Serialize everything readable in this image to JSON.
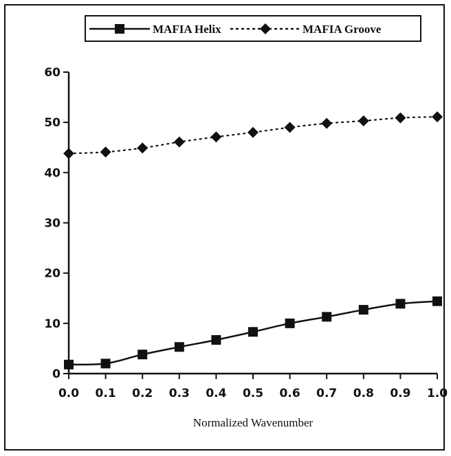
{
  "chart_data": {
    "type": "line",
    "xlabel": "Normalized Wavenumber",
    "ylabel": "",
    "title": "",
    "xlim": [
      0.0,
      1.0
    ],
    "ylim": [
      0,
      60
    ],
    "x_ticks": [
      "0.0",
      "0.1",
      "0.2",
      "0.3",
      "0.4",
      "0.5",
      "0.6",
      "0.7",
      "0.8",
      "0.9",
      "1.0"
    ],
    "y_ticks": [
      "0",
      "10",
      "20",
      "30",
      "40",
      "50",
      "60"
    ],
    "grid": false,
    "legend_position": "top",
    "x": [
      0.0,
      0.1,
      0.2,
      0.3,
      0.4,
      0.5,
      0.6,
      0.7,
      0.8,
      0.9,
      1.0
    ],
    "series": [
      {
        "name": "MAFIA Helix",
        "style": "solid",
        "marker": "square",
        "values": [
          1.8,
          2.0,
          3.8,
          5.3,
          6.7,
          8.3,
          10.0,
          11.3,
          12.7,
          13.9,
          14.4
        ]
      },
      {
        "name": "MAFIA Groove",
        "style": "dotted",
        "marker": "diamond",
        "values": [
          43.8,
          44.1,
          44.9,
          46.1,
          47.1,
          48.0,
          49.0,
          49.8,
          50.3,
          50.9,
          51.1
        ]
      }
    ],
    "colors": {
      "line": "#111111",
      "background": "#ffffff"
    }
  }
}
